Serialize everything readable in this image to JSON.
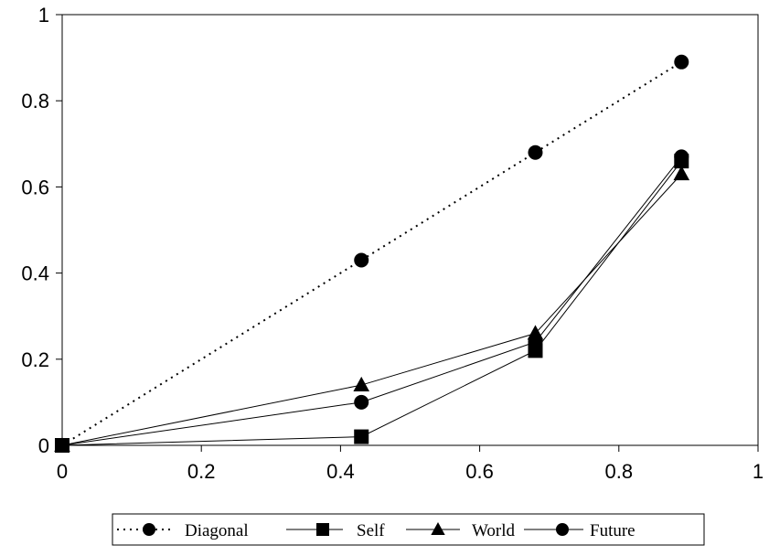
{
  "chart_data": {
    "type": "line",
    "title": "",
    "xlabel": "",
    "ylabel": "",
    "xlim": [
      0,
      1
    ],
    "ylim": [
      0,
      1
    ],
    "x_ticks": [
      "0",
      "0.2",
      "0.4",
      "0.6",
      "0.8",
      "1"
    ],
    "y_ticks": [
      "0",
      "0.2",
      "0.4",
      "0.6",
      "0.8",
      "1"
    ],
    "grid": false,
    "legend_position": "bottom",
    "series": [
      {
        "name": "Diagonal",
        "marker": "circle",
        "line_style": "dotted",
        "x": [
          0,
          0.43,
          0.68,
          0.89
        ],
        "y": [
          0,
          0.43,
          0.68,
          0.89
        ]
      },
      {
        "name": "Self",
        "marker": "square",
        "line_style": "solid",
        "x": [
          0,
          0.43,
          0.68,
          0.89
        ],
        "y": [
          0,
          0.02,
          0.22,
          0.66
        ]
      },
      {
        "name": "World",
        "marker": "triangle",
        "line_style": "solid",
        "x": [
          0,
          0.43,
          0.68,
          0.89
        ],
        "y": [
          0,
          0.14,
          0.26,
          0.63
        ]
      },
      {
        "name": "Future",
        "marker": "circle",
        "line_style": "solid",
        "x": [
          0,
          0.43,
          0.68,
          0.89
        ],
        "y": [
          0,
          0.1,
          0.24,
          0.67
        ]
      }
    ],
    "colors": {
      "line": "#000000",
      "marker": "#000000",
      "background": "#ffffff"
    }
  }
}
